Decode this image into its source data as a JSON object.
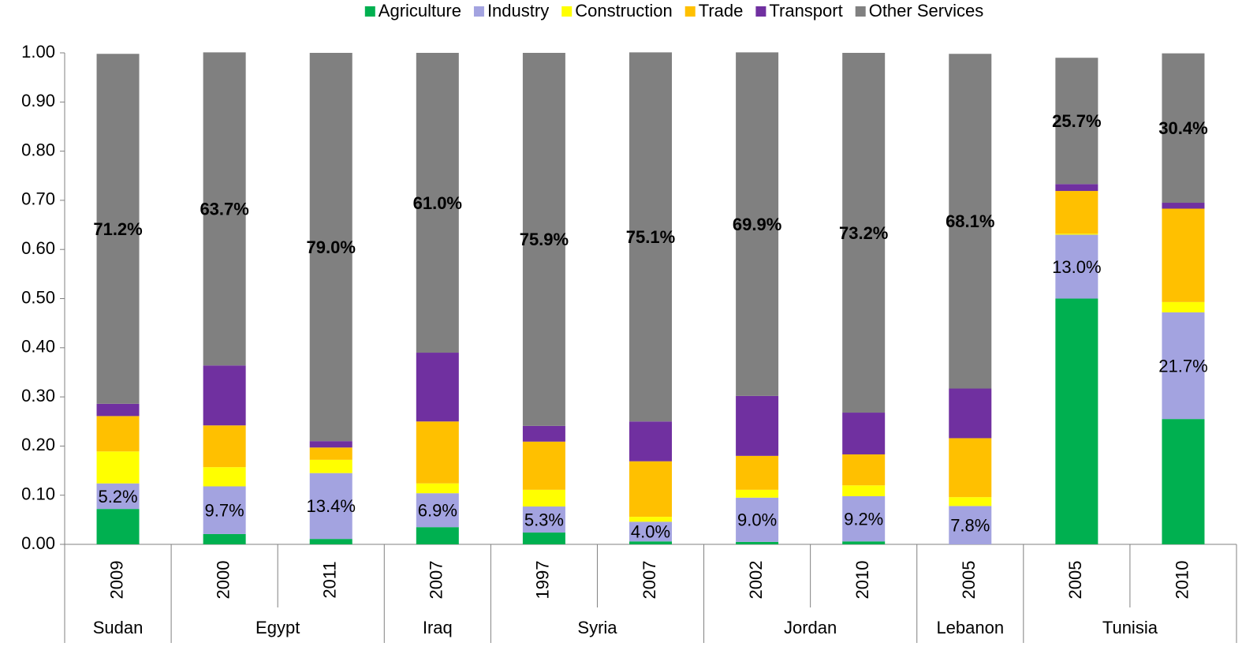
{
  "chart_data": {
    "type": "stacked_bar",
    "groups": [
      {
        "name": "Sudan",
        "categories": [
          "2009"
        ]
      },
      {
        "name": "Egypt",
        "categories": [
          "2000",
          "2011"
        ]
      },
      {
        "name": "Iraq",
        "categories": [
          "2007"
        ]
      },
      {
        "name": "Syria",
        "categories": [
          "1997",
          "2007"
        ]
      },
      {
        "name": "Jordan",
        "categories": [
          "2002",
          "2010"
        ]
      },
      {
        "name": "Lebanon",
        "categories": [
          "2005"
        ]
      },
      {
        "name": "Tunisia",
        "categories": [
          "2005",
          "2010"
        ]
      }
    ],
    "series": [
      {
        "name": "Agriculture",
        "color": "#00b050",
        "values": [
          0.072,
          0.021,
          0.011,
          0.035,
          0.024,
          0.006,
          0.005,
          0.006,
          0.0,
          0.5,
          0.255
        ]
      },
      {
        "name": "Industry",
        "color": "#a3a3e0",
        "values": [
          0.052,
          0.097,
          0.134,
          0.069,
          0.053,
          0.04,
          0.09,
          0.092,
          0.078,
          0.13,
          0.217
        ],
        "value_labels": [
          "5.2%",
          "9.7%",
          "13.4%",
          "6.9%",
          "5.3%",
          "4.0%",
          "9.0%",
          "9.2%",
          "7.8%",
          "13.0%",
          "21.7%"
        ]
      },
      {
        "name": "Construction",
        "color": "#ffff00",
        "values": [
          0.065,
          0.039,
          0.027,
          0.02,
          0.034,
          0.01,
          0.016,
          0.022,
          0.018,
          0.002,
          0.021
        ]
      },
      {
        "name": "Trade",
        "color": "#ffc000",
        "values": [
          0.072,
          0.085,
          0.025,
          0.126,
          0.098,
          0.113,
          0.069,
          0.063,
          0.12,
          0.087,
          0.19
        ]
      },
      {
        "name": "Transport",
        "color": "#7030a0",
        "values": [
          0.025,
          0.122,
          0.013,
          0.14,
          0.032,
          0.081,
          0.122,
          0.085,
          0.101,
          0.014,
          0.012
        ]
      },
      {
        "name": "Other Services",
        "color": "#808080",
        "values": [
          0.712,
          0.637,
          0.79,
          0.61,
          0.759,
          0.751,
          0.699,
          0.732,
          0.681,
          0.257,
          0.304
        ],
        "value_labels": [
          "71.2%",
          "63.7%",
          "79.0%",
          "61.0%",
          "75.9%",
          "75.1%",
          "69.9%",
          "73.2%",
          "68.1%",
          "25.7%",
          "30.4%"
        ]
      }
    ],
    "ylim": [
      0,
      1
    ],
    "yticks": [
      {
        "value": 0,
        "label": "0.00"
      },
      {
        "value": 0.1,
        "label": "0.10"
      },
      {
        "value": 0.2,
        "label": "0.20"
      },
      {
        "value": 0.3,
        "label": "0.30"
      },
      {
        "value": 0.4,
        "label": "0.40"
      },
      {
        "value": 0.5,
        "label": "0.50"
      },
      {
        "value": 0.6,
        "label": "0.60"
      },
      {
        "value": 0.7,
        "label": "0.70"
      },
      {
        "value": 0.8,
        "label": "0.80"
      },
      {
        "value": 0.9,
        "label": "0.90"
      },
      {
        "value": 1,
        "label": "1.00"
      }
    ],
    "legend": "top",
    "grid": false
  }
}
